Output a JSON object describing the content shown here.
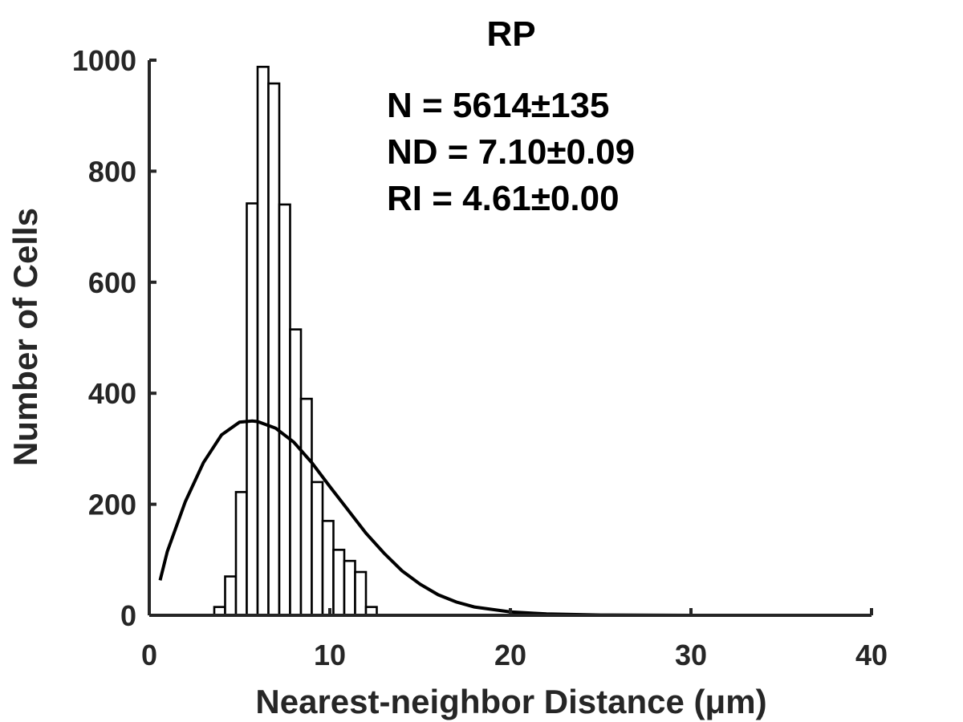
{
  "chart_data": {
    "type": "bar",
    "title": "RP",
    "xlabel": "Nearest-neighbor Distance (μm)",
    "ylabel": "Number of Cells",
    "xlim": [
      0,
      40
    ],
    "ylim": [
      0,
      1000
    ],
    "xticks": [
      "0",
      "10",
      "20",
      "30",
      "40"
    ],
    "yticks": [
      "0",
      "200",
      "400",
      "600",
      "800",
      "1000"
    ],
    "grid": false,
    "bin_width": 0.6,
    "bars": [
      {
        "x": 3.6,
        "value": 15
      },
      {
        "x": 4.2,
        "value": 70
      },
      {
        "x": 4.8,
        "value": 222
      },
      {
        "x": 5.4,
        "value": 742
      },
      {
        "x": 6.0,
        "value": 988
      },
      {
        "x": 6.6,
        "value": 958
      },
      {
        "x": 7.2,
        "value": 740
      },
      {
        "x": 7.8,
        "value": 515
      },
      {
        "x": 8.4,
        "value": 390
      },
      {
        "x": 9.0,
        "value": 240
      },
      {
        "x": 9.6,
        "value": 170
      },
      {
        "x": 10.2,
        "value": 118
      },
      {
        "x": 10.8,
        "value": 98
      },
      {
        "x": 11.4,
        "value": 78
      },
      {
        "x": 12.0,
        "value": 15
      }
    ],
    "fit_curve": {
      "x": [
        0.6,
        1,
        2,
        3,
        4,
        5,
        5.7,
        6,
        7,
        8,
        9,
        10,
        11,
        12,
        13,
        14,
        15,
        16,
        17,
        18,
        20,
        22,
        25,
        30,
        35,
        39.5
      ],
      "y": [
        63,
        115,
        205,
        275,
        325,
        348,
        350,
        349,
        337,
        312,
        275,
        232,
        190,
        148,
        112,
        80,
        56,
        37,
        24,
        15,
        6,
        2.5,
        0.6,
        0,
        0,
        0
      ]
    },
    "annotations": [
      "N = 5614±135",
      "ND = 7.10±0.09",
      "RI = 4.61±0.00"
    ]
  }
}
